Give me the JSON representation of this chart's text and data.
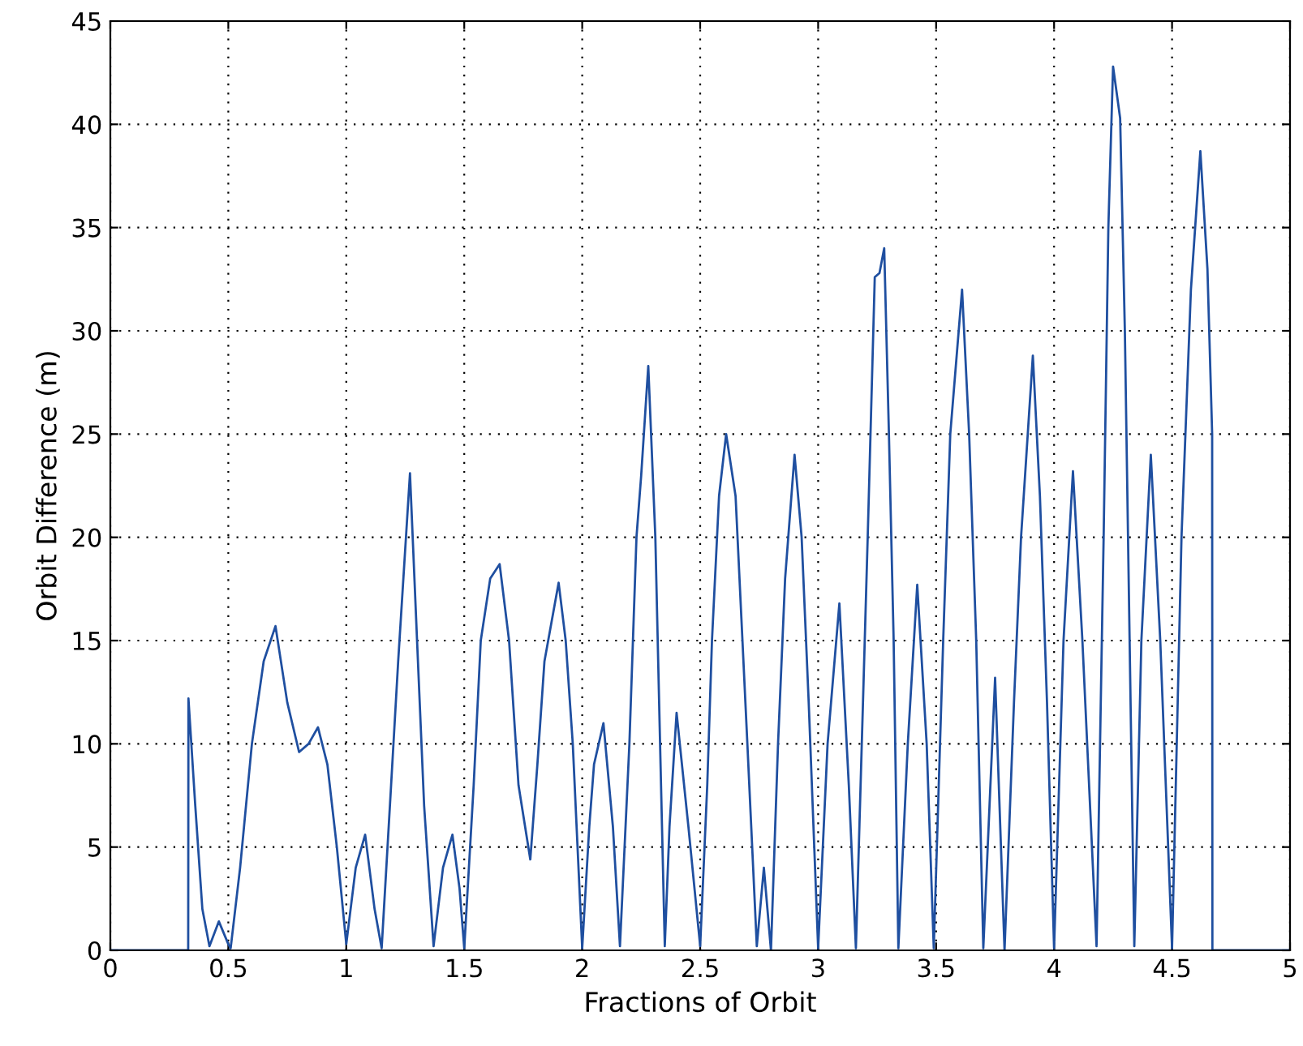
{
  "chart_data": {
    "type": "line",
    "xlabel": "Fractions of Orbit",
    "ylabel": "Orbit Difference (m)",
    "xlim": [
      0,
      5
    ],
    "ylim": [
      0,
      45
    ],
    "xticks": [
      0,
      0.5,
      1,
      1.5,
      2,
      2.5,
      3,
      3.5,
      4,
      4.5,
      5
    ],
    "yticks": [
      0,
      5,
      10,
      15,
      20,
      25,
      30,
      35,
      40,
      45
    ],
    "grid": true,
    "series": [
      {
        "color": "#1f4fa0",
        "x": [
          0,
          0.33,
          0.331,
          0.36,
          0.39,
          0.42,
          0.46,
          0.5,
          0.51,
          0.55,
          0.6,
          0.65,
          0.7,
          0.75,
          0.8,
          0.84,
          0.88,
          0.92,
          0.96,
          1.0,
          1.04,
          1.08,
          1.12,
          1.15,
          1.19,
          1.22,
          1.27,
          1.3,
          1.33,
          1.37,
          1.41,
          1.45,
          1.48,
          1.5,
          1.54,
          1.57,
          1.61,
          1.65,
          1.69,
          1.73,
          1.78,
          1.81,
          1.84,
          1.9,
          1.93,
          1.96,
          2.0,
          2.03,
          2.05,
          2.09,
          2.13,
          2.16,
          2.2,
          2.23,
          2.25,
          2.28,
          2.31,
          2.33,
          2.35,
          2.37,
          2.4,
          2.45,
          2.5,
          2.53,
          2.55,
          2.58,
          2.61,
          2.65,
          2.7,
          2.74,
          2.77,
          2.8,
          2.83,
          2.86,
          2.9,
          2.93,
          2.96,
          3.0,
          3.04,
          3.09,
          3.13,
          3.16,
          3.19,
          3.21,
          3.24,
          3.26,
          3.28,
          3.3,
          3.32,
          3.34,
          3.38,
          3.42,
          3.46,
          3.49,
          3.53,
          3.56,
          3.61,
          3.64,
          3.67,
          3.7,
          3.75,
          3.79,
          3.83,
          3.86,
          3.91,
          3.94,
          3.97,
          4.0,
          4.04,
          4.08,
          4.12,
          4.18,
          4.21,
          4.23,
          4.25,
          4.28,
          4.3,
          4.34,
          4.37,
          4.41,
          4.45,
          4.5,
          4.54,
          4.58,
          4.62,
          4.65,
          4.67,
          4.671,
          5
        ],
        "values": [
          0,
          0,
          12.2,
          7,
          2,
          0.2,
          1.4,
          0.3,
          0.1,
          4,
          10,
          14,
          15.7,
          12,
          9.6,
          10,
          10.8,
          9,
          5,
          0.3,
          4,
          5.6,
          2,
          0.1,
          8,
          14,
          23.1,
          15,
          7,
          0.2,
          4,
          5.6,
          3,
          0.1,
          8,
          15,
          18,
          18.7,
          15,
          8,
          4.4,
          9,
          14,
          17.8,
          15,
          10,
          0.1,
          6,
          9,
          11,
          6,
          0.2,
          10,
          20,
          23,
          28.3,
          20,
          10,
          0.2,
          6,
          11.5,
          6,
          0.2,
          8,
          15,
          22,
          25,
          22,
          10,
          0.2,
          4,
          0,
          10,
          18,
          24,
          20,
          12,
          0.1,
          10,
          16.8,
          8,
          0.1,
          12,
          20,
          32.6,
          32.8,
          34,
          25,
          15,
          0.1,
          10,
          17.7,
          10,
          0.1,
          15,
          25,
          32,
          25,
          15,
          0.1,
          13.2,
          0,
          12,
          20,
          28.8,
          22,
          12,
          0.1,
          15,
          23.2,
          15,
          0.2,
          20,
          35,
          42.8,
          40.3,
          30,
          0.2,
          15,
          24,
          15,
          0.1,
          20,
          32,
          38.7,
          33,
          25,
          0,
          0
        ]
      }
    ]
  }
}
